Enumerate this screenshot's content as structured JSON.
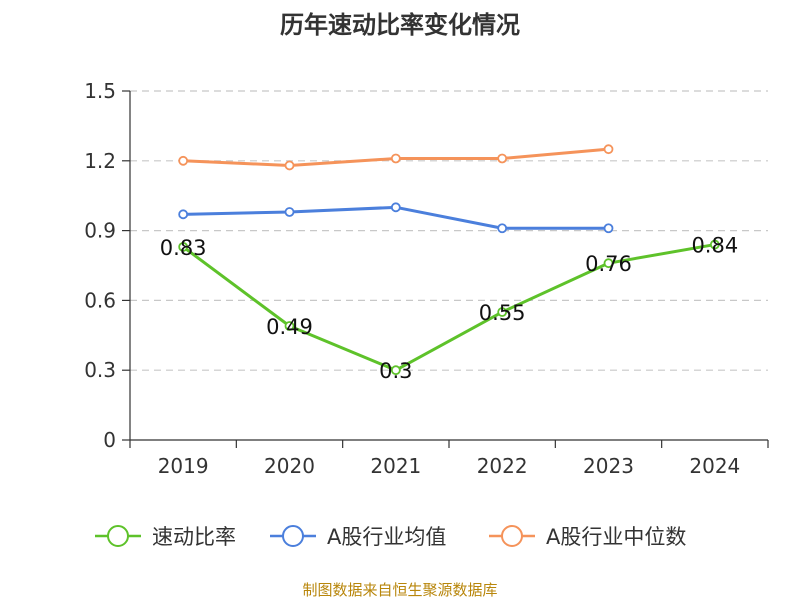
{
  "title": "历年速动比率变化情况",
  "source_note": "制图数据来自恒生聚源数据库",
  "chart_data": {
    "type": "line",
    "title": "历年速动比率变化情况",
    "xlabel": "",
    "ylabel": "",
    "categories": [
      "2019",
      "2020",
      "2021",
      "2022",
      "2023",
      "2024"
    ],
    "ylim": [
      0,
      1.5
    ],
    "yticks": [
      "0",
      "0.3",
      "0.6",
      "0.9",
      "1.2",
      "1.5"
    ],
    "grid": true,
    "legend_position": "bottom",
    "series": [
      {
        "name": "速动比率",
        "color": "#5ec22a",
        "values": [
          0.83,
          0.49,
          0.3,
          0.55,
          0.76,
          0.84
        ],
        "labels": [
          "0.83",
          "0.49",
          "0.3",
          "0.55",
          "0.76",
          "0.84"
        ]
      },
      {
        "name": "A股行业均值",
        "color": "#4b7fdc",
        "values": [
          0.97,
          0.98,
          1.0,
          0.91,
          0.91,
          null
        ]
      },
      {
        "name": "A股行业中位数",
        "color": "#f5935a",
        "values": [
          1.2,
          1.18,
          1.21,
          1.21,
          1.25,
          null
        ]
      }
    ]
  }
}
